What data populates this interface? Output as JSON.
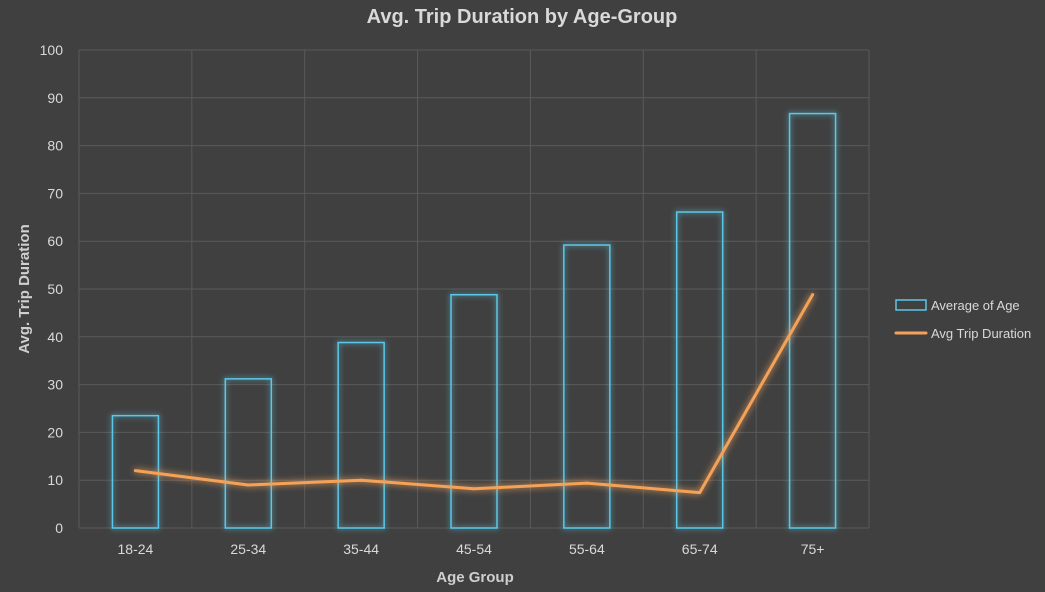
{
  "chart_data": {
    "type": "bar",
    "title": "Avg. Trip Duration by Age-Group",
    "xlabel": "Age Group",
    "ylabel": "Avg. Trip Duration",
    "ylim": [
      0,
      100
    ],
    "yticks": [
      0,
      10,
      20,
      30,
      40,
      50,
      60,
      70,
      80,
      90,
      100
    ],
    "categories": [
      "18-24",
      "25-34",
      "35-44",
      "45-54",
      "55-64",
      "65-74",
      "75+"
    ],
    "grid": true,
    "legend_position": "right",
    "series": [
      {
        "name": "Average of Age",
        "type": "bar",
        "style": "outline",
        "color": "#5bc8e6",
        "values": [
          23.5,
          31.2,
          38.8,
          48.8,
          59.2,
          66.1,
          86.7
        ]
      },
      {
        "name": "Avg Trip Duration",
        "type": "line",
        "color": "#f4a259",
        "values": [
          12.0,
          9.0,
          10.0,
          8.2,
          9.4,
          7.4,
          48.8
        ]
      }
    ]
  }
}
